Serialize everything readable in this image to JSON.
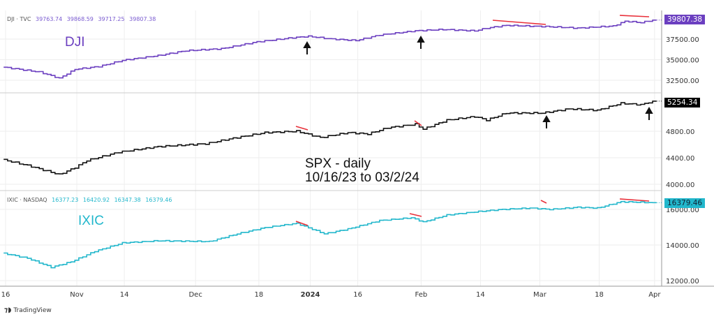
{
  "colors": {
    "dji": "#6b3fc0",
    "spx": "#111111",
    "ixic": "#22b7cc",
    "annotation_red": "#e8303a",
    "arrow": "#111111",
    "grid": "#eeeeee"
  },
  "legends": {
    "dji": {
      "name": "DJI · TVC",
      "values": [
        "39763.74",
        "39868.59",
        "39717.25",
        "39807.38"
      ]
    },
    "ixic": {
      "name": "IXIC · NASDAQ",
      "values": [
        "16377.23",
        "16420.92",
        "16347.38",
        "16379.46"
      ]
    }
  },
  "annotations": {
    "dji_label": "DJI",
    "ixic_label": "IXIC",
    "spx_line1": "SPX - daily",
    "spx_line2": "10/16/23 to 03/2/24"
  },
  "footer": {
    "brand": "TradingView"
  },
  "chart_data": [
    {
      "type": "line",
      "name": "DJI",
      "last_value_label": "39807.38",
      "ylim": [
        31500,
        40500
      ],
      "yticks": [
        {
          "v": 37500,
          "label": "37500.00"
        },
        {
          "v": 35000,
          "label": "35000.00"
        },
        {
          "v": 32500,
          "label": "32500.00"
        }
      ],
      "x_days": [
        0,
        9,
        14,
        18,
        24,
        30,
        39,
        46,
        55,
        64,
        73,
        77,
        83,
        89,
        95,
        104,
        111,
        119,
        122,
        127,
        138,
        145,
        154,
        157,
        161,
        164
      ],
      "values": [
        34083,
        33500,
        32750,
        33833,
        34167,
        34917,
        35500,
        36083,
        36333,
        37167,
        37667,
        37833,
        37500,
        37333,
        38000,
        38500,
        38667,
        38500,
        38833,
        39167,
        39000,
        38833,
        39083,
        39667,
        39500,
        39807
      ]
    },
    {
      "type": "line",
      "name": "SPX",
      "last_value_label": "5254.34",
      "ylim": [
        3900,
        5450
      ],
      "yticks": [
        {
          "v": 4800,
          "label": "4800.00"
        },
        {
          "v": 4400,
          "label": "4400.00"
        },
        {
          "v": 4000,
          "label": "4000.00"
        }
      ],
      "x_days": [
        0,
        6,
        14,
        18,
        21,
        29,
        39,
        51,
        58,
        66,
        74,
        80,
        87,
        92,
        97,
        104,
        106,
        112,
        119,
        122,
        127,
        136,
        143,
        150,
        156,
        161,
        164
      ],
      "values": [
        4368,
        4284,
        4147,
        4253,
        4358,
        4484,
        4568,
        4611,
        4695,
        4779,
        4800,
        4705,
        4779,
        4758,
        4853,
        4905,
        4832,
        4968,
        5021,
        4968,
        5074,
        5074,
        5137,
        5116,
        5221,
        5200,
        5254
      ]
    },
    {
      "type": "line",
      "name": "IXIC",
      "last_value_label": "16379.46",
      "ylim": [
        11900,
        16900
      ],
      "yticks": [
        {
          "v": 16000,
          "label": "16000.00"
        },
        {
          "v": 14000,
          "label": "14000.00"
        },
        {
          "v": 12000,
          "label": "12000.00"
        }
      ],
      "x_days": [
        0,
        6,
        12,
        17,
        23,
        30,
        39,
        52,
        59,
        66,
        74,
        81,
        87,
        95,
        103,
        106,
        112,
        120,
        126,
        133,
        138,
        145,
        150,
        156,
        164
      ],
      "values": [
        13529,
        13255,
        12745,
        13059,
        13647,
        14118,
        14235,
        14196,
        14627,
        14980,
        15216,
        14627,
        14902,
        15373,
        15529,
        15294,
        15686,
        15882,
        16000,
        16078,
        16000,
        16118,
        16078,
        16431,
        16379
      ]
    }
  ],
  "x_axis": {
    "start": "2023-10-16",
    "ticks": [
      {
        "d": 0,
        "label": "16"
      },
      {
        "d": 18,
        "label": "Nov"
      },
      {
        "d": 30,
        "label": "14"
      },
      {
        "d": 48,
        "label": "Dec"
      },
      {
        "d": 64,
        "label": "18"
      },
      {
        "d": 77,
        "label": "2024"
      },
      {
        "d": 89,
        "label": "16"
      },
      {
        "d": 105,
        "label": "Feb"
      },
      {
        "d": 120,
        "label": "14"
      },
      {
        "d": 135,
        "label": "Mar"
      },
      {
        "d": 150,
        "label": "18"
      },
      {
        "d": 164,
        "label": "Apr"
      }
    ]
  }
}
